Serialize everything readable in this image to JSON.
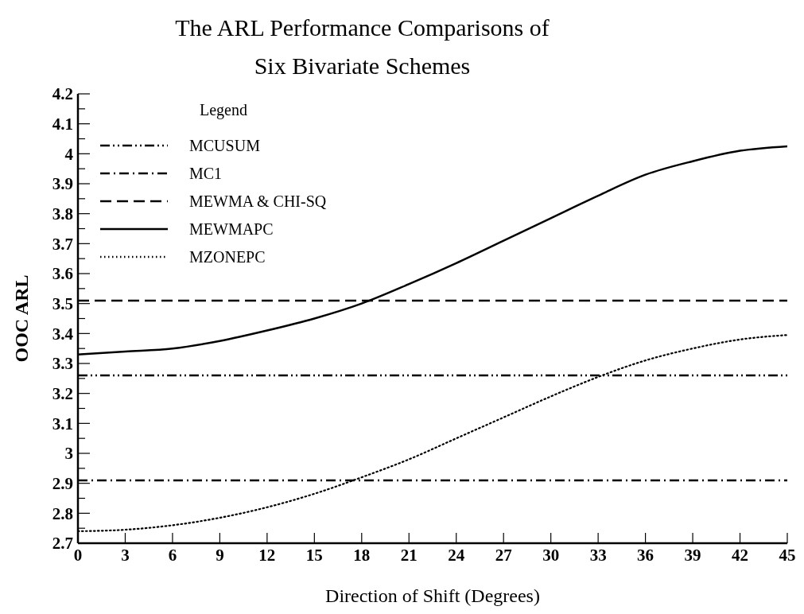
{
  "chart_data": {
    "type": "line",
    "title": "The ARL Performance Comparisons of Six Bivariate Schemes",
    "xlabel": "Direction  of  Shift (Degrees)",
    "ylabel": "OOC ARL",
    "legend_title": "Legend",
    "legend": "top left",
    "grid": false,
    "xlim": [
      0,
      45
    ],
    "xticks": [
      0,
      3,
      6,
      9,
      12,
      15,
      18,
      21,
      24,
      27,
      30,
      33,
      36,
      39,
      42,
      45
    ],
    "ylim": [
      2.7,
      4.2
    ],
    "yticks": [
      2.7,
      {
        "value": 2.75,
        "label": null
      },
      2.8,
      {
        "value": 2.85,
        "label": null
      },
      2.9,
      {
        "value": 2.95,
        "label": null
      },
      3,
      {
        "value": 3.05,
        "label": null
      },
      3.1,
      {
        "value": 3.15,
        "label": null
      },
      3.2,
      {
        "value": 3.25,
        "label": null
      },
      3.3,
      {
        "value": 3.35,
        "label": null
      },
      3.4,
      {
        "value": 3.45,
        "label": null
      },
      3.5,
      {
        "value": 3.55,
        "label": null
      },
      3.6,
      {
        "value": 3.65,
        "label": null
      },
      3.7,
      {
        "value": 3.75,
        "label": null
      },
      3.8,
      {
        "value": 3.85,
        "label": null
      },
      3.9,
      {
        "value": 3.95,
        "label": null
      },
      4,
      {
        "value": 4.05,
        "label": null
      },
      4.1,
      {
        "value": 4.15,
        "label": null
      },
      4.2
    ],
    "series": [
      {
        "name": "MCUSUM",
        "color": "#000000",
        "line_style": "dashdotdot",
        "x": [
          0,
          45
        ],
        "values": [
          3.26,
          3.26
        ]
      },
      {
        "name": "MC1",
        "color": "#000000",
        "line_style": "dashdot",
        "x": [
          0,
          45
        ],
        "values": [
          2.91,
          2.91
        ]
      },
      {
        "name": "MEWMA & CHI-SQ",
        "color": "#000000",
        "line_style": "dashed",
        "x": [
          0,
          45
        ],
        "values": [
          3.51,
          3.51
        ]
      },
      {
        "name": "MEWMAPC",
        "color": "#000000",
        "line_style": "solid",
        "x": [
          0,
          3,
          6,
          9,
          12,
          15,
          18,
          21,
          24,
          27,
          30,
          33,
          36,
          39,
          42,
          45
        ],
        "values": [
          3.33,
          3.34,
          3.35,
          3.375,
          3.41,
          3.45,
          3.5,
          3.565,
          3.635,
          3.71,
          3.785,
          3.86,
          3.93,
          3.975,
          4.01,
          4.025
        ]
      },
      {
        "name": "MZONEPC",
        "color": "#000000",
        "line_style": "dotted",
        "x": [
          0,
          3,
          6,
          9,
          12,
          15,
          18,
          21,
          24,
          27,
          30,
          33,
          36,
          39,
          42,
          45
        ],
        "values": [
          2.74,
          2.745,
          2.76,
          2.785,
          2.82,
          2.865,
          2.92,
          2.98,
          3.05,
          3.12,
          3.19,
          3.255,
          3.31,
          3.35,
          3.38,
          3.395
        ]
      }
    ]
  }
}
